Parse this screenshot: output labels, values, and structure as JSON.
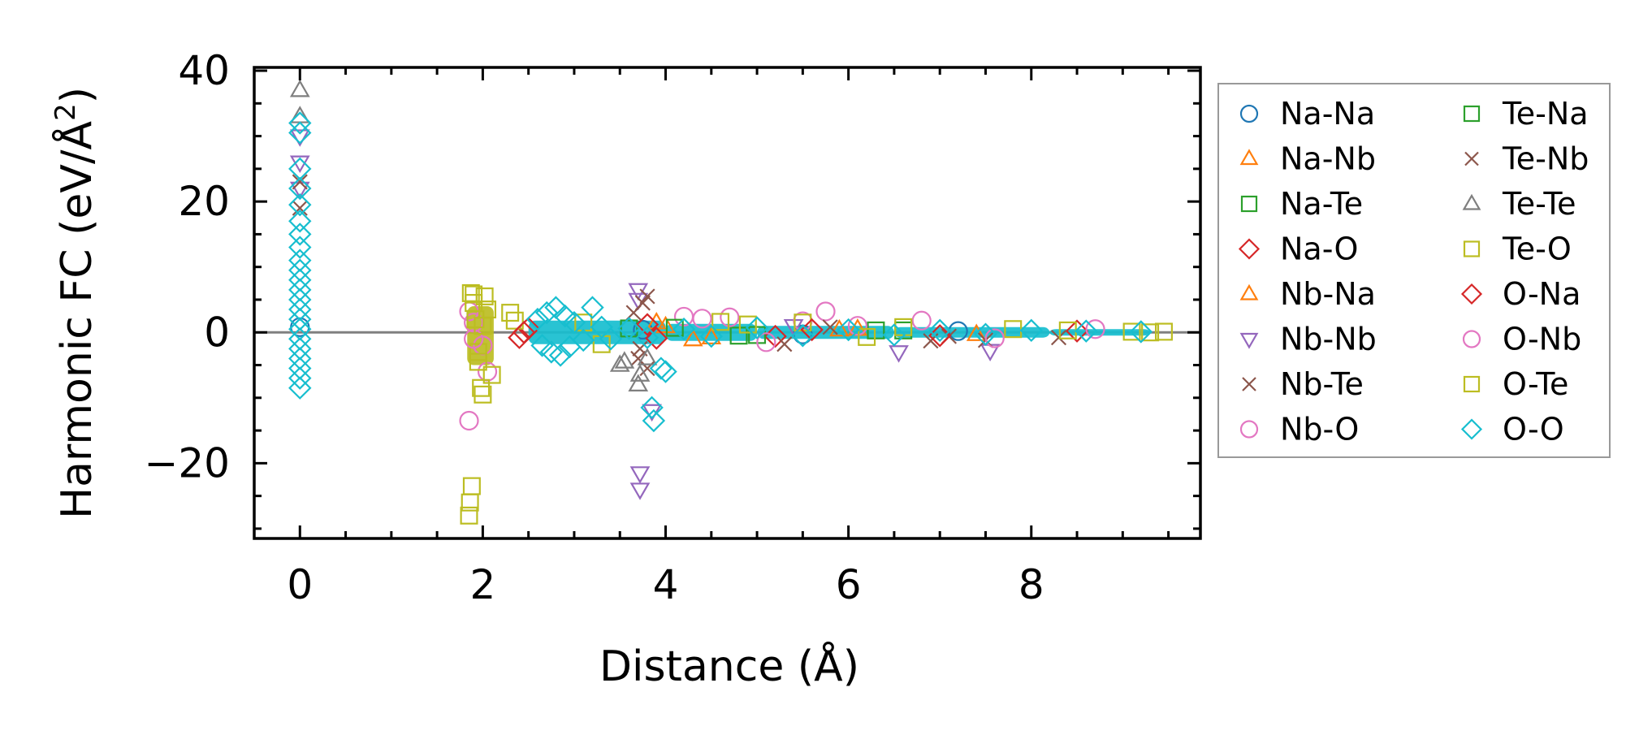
{
  "chart_data": {
    "type": "scatter",
    "title": "",
    "xlabel": "Distance (Å)",
    "ylabel_main": "Harmonic FC (eV/Å",
    "ylabel_sup": "2",
    "ylabel_close": ")",
    "xlim": [
      -0.5,
      9.85
    ],
    "ylim": [
      -31.5,
      40.5
    ],
    "x_ticks": [
      0,
      2,
      4,
      6,
      8
    ],
    "x_tick_labels": [
      "0",
      "2",
      "4",
      "6",
      "8"
    ],
    "y_ticks": [
      -20,
      0,
      20,
      40
    ],
    "y_tick_labels": [
      "−20",
      "0",
      "20",
      "40"
    ],
    "x_minor_step": 0.5,
    "y_minor_step": 5,
    "zero_line": true,
    "legend_position": "outside-right",
    "series": [
      {
        "name": "Na-Na",
        "marker": "circle",
        "color": "#1f77b4",
        "points": [
          [
            0.0,
            0.8
          ],
          [
            3.75,
            0.4
          ],
          [
            5.5,
            -0.3
          ],
          [
            7.2,
            0.2
          ]
        ]
      },
      {
        "name": "Na-Nb",
        "marker": "triangle-up",
        "color": "#ff7f0e",
        "points": [
          [
            3.9,
            1.5
          ],
          [
            4.5,
            -0.8
          ],
          [
            6.1,
            0.5
          ],
          [
            7.4,
            -0.3
          ]
        ]
      },
      {
        "name": "Na-Te",
        "marker": "square",
        "color": "#2ca02c",
        "points": [
          [
            3.6,
            0.6
          ],
          [
            4.8,
            -0.5
          ],
          [
            6.3,
            0.3
          ]
        ]
      },
      {
        "name": "Na-O",
        "marker": "diamond",
        "color": "#d62728",
        "points": [
          [
            2.4,
            -0.8
          ],
          [
            2.5,
            0.6
          ],
          [
            3.8,
            1.2
          ],
          [
            5.2,
            -0.6
          ],
          [
            8.5,
            0.2
          ]
        ]
      },
      {
        "name": "Nb-Na",
        "marker": "triangle-up",
        "color": "#ff7f0e",
        "points": [
          [
            4.0,
            0.9
          ],
          [
            4.3,
            -1.1
          ],
          [
            5.9,
            0.4
          ]
        ]
      },
      {
        "name": "Nb-Nb",
        "marker": "triangle-down",
        "color": "#9467bd",
        "points": [
          [
            0.0,
            30.0
          ],
          [
            0.0,
            26.0
          ],
          [
            0.0,
            22.0
          ],
          [
            3.7,
            6.5
          ],
          [
            3.7,
            5.0
          ],
          [
            3.72,
            -21.5
          ],
          [
            3.72,
            -24.0
          ],
          [
            3.85,
            -12.0
          ],
          [
            6.55,
            -3.0
          ],
          [
            7.55,
            -2.8
          ],
          [
            5.4,
            1.0
          ]
        ]
      },
      {
        "name": "Nb-Te",
        "marker": "x",
        "color": "#8c564b",
        "points": [
          [
            0.0,
            23.0
          ],
          [
            0.0,
            19.0
          ],
          [
            3.75,
            4.5
          ],
          [
            3.8,
            5.5
          ],
          [
            3.7,
            -4.0
          ],
          [
            3.8,
            -5.5
          ],
          [
            5.3,
            -1.8
          ],
          [
            6.9,
            -1.3
          ],
          [
            7.5,
            -1.2
          ],
          [
            8.3,
            -0.8
          ]
        ]
      },
      {
        "name": "Nb-O",
        "marker": "circle",
        "color": "#e377c2",
        "points": [
          [
            1.85,
            -13.5
          ],
          [
            1.85,
            3.2
          ],
          [
            1.9,
            1.5
          ],
          [
            2.0,
            -2.0
          ],
          [
            2.05,
            -6.0
          ],
          [
            4.2,
            2.4
          ],
          [
            4.7,
            2.3
          ],
          [
            5.5,
            1.7
          ],
          [
            5.75,
            3.2
          ],
          [
            6.8,
            1.8
          ],
          [
            8.7,
            0.5
          ]
        ]
      },
      {
        "name": "Te-Na",
        "marker": "square",
        "color": "#2ca02c",
        "points": [
          [
            4.1,
            0.7
          ],
          [
            5.0,
            -0.4
          ],
          [
            6.6,
            0.3
          ]
        ]
      },
      {
        "name": "Te-Nb",
        "marker": "x",
        "color": "#8c564b",
        "points": [
          [
            3.65,
            3.0
          ],
          [
            3.72,
            -2.5
          ],
          [
            5.8,
            0.8
          ],
          [
            7.1,
            -0.6
          ]
        ]
      },
      {
        "name": "Te-Te",
        "marker": "triangle-up",
        "color": "#7f7f7f",
        "points": [
          [
            0.0,
            37.0
          ],
          [
            0.0,
            33.0
          ],
          [
            3.5,
            -5.0
          ],
          [
            3.55,
            -4.5
          ],
          [
            3.7,
            -8.0
          ],
          [
            3.72,
            -6.5
          ],
          [
            3.8,
            -4.0
          ]
        ]
      },
      {
        "name": "Te-O",
        "marker": "square",
        "color": "#bcbd22",
        "points": [
          [
            1.85,
            -28.0
          ],
          [
            1.88,
            -23.5
          ],
          [
            1.87,
            6.0
          ],
          [
            1.9,
            4.5
          ],
          [
            1.92,
            2.0
          ],
          [
            1.95,
            -3.0
          ],
          [
            1.98,
            -8.5
          ],
          [
            2.0,
            -9.5
          ],
          [
            2.02,
            5.5
          ],
          [
            2.05,
            3.5
          ],
          [
            2.1,
            -6.5
          ],
          [
            2.3,
            3.0
          ],
          [
            2.35,
            1.8
          ],
          [
            3.3,
            -1.8
          ],
          [
            4.6,
            1.6
          ],
          [
            5.5,
            1.5
          ],
          [
            6.6,
            0.8
          ],
          [
            7.8,
            0.5
          ],
          [
            9.3,
            0.0
          ],
          [
            9.45,
            0.1
          ]
        ]
      },
      {
        "name": "O-Na",
        "marker": "diamond",
        "color": "#d62728",
        "points": [
          [
            2.45,
            0.0
          ],
          [
            3.9,
            -0.9
          ],
          [
            5.6,
            0.4
          ],
          [
            7.0,
            -0.5
          ]
        ]
      },
      {
        "name": "O-Nb",
        "marker": "circle",
        "color": "#e377c2",
        "points": [
          [
            1.9,
            -1.0
          ],
          [
            4.4,
            2.1
          ],
          [
            5.1,
            -1.5
          ],
          [
            6.1,
            1.0
          ],
          [
            7.6,
            -0.9
          ]
        ]
      },
      {
        "name": "O-Te",
        "marker": "square",
        "color": "#bcbd22",
        "points": [
          [
            1.86,
            -26.0
          ],
          [
            1.9,
            5.8
          ],
          [
            1.95,
            -4.5
          ],
          [
            2.0,
            1.0
          ],
          [
            3.1,
            1.5
          ],
          [
            4.9,
            1.2
          ],
          [
            6.2,
            -0.7
          ],
          [
            8.4,
            0.3
          ],
          [
            9.1,
            0.1
          ]
        ]
      },
      {
        "name": "O-O",
        "marker": "diamond",
        "color": "#17becf",
        "points": [
          [
            0.0,
            32.0
          ],
          [
            0.0,
            30.5
          ],
          [
            0.0,
            25.0
          ],
          [
            0.0,
            22.0
          ],
          [
            0.0,
            19.5
          ],
          [
            0.0,
            17.0
          ],
          [
            0.0,
            15.0
          ],
          [
            0.0,
            13.0
          ],
          [
            0.0,
            11.0
          ],
          [
            0.0,
            9.5
          ],
          [
            0.0,
            8.0
          ],
          [
            0.0,
            6.5
          ],
          [
            0.0,
            5.0
          ],
          [
            0.0,
            3.5
          ],
          [
            0.0,
            2.0
          ],
          [
            0.0,
            0.5
          ],
          [
            0.0,
            -1.0
          ],
          [
            0.0,
            -2.5
          ],
          [
            0.0,
            -4.0
          ],
          [
            0.0,
            -5.5
          ],
          [
            0.0,
            -7.0
          ],
          [
            0.0,
            -8.5
          ],
          [
            2.6,
            2.0
          ],
          [
            2.65,
            -2.0
          ],
          [
            2.7,
            3.0
          ],
          [
            2.75,
            -3.0
          ],
          [
            2.8,
            3.8
          ],
          [
            2.85,
            -3.5
          ],
          [
            2.9,
            2.5
          ],
          [
            2.95,
            -2.2
          ],
          [
            3.0,
            1.5
          ],
          [
            3.1,
            -1.2
          ],
          [
            3.2,
            3.8
          ],
          [
            3.3,
            0.8
          ],
          [
            3.4,
            -1.0
          ],
          [
            3.6,
            0.6
          ],
          [
            3.8,
            -0.8
          ],
          [
            3.85,
            -11.5
          ],
          [
            3.87,
            -13.5
          ],
          [
            3.95,
            -5.5
          ],
          [
            4.0,
            -6.0
          ],
          [
            4.2,
            0.5
          ],
          [
            4.5,
            -0.6
          ],
          [
            5.0,
            0.7
          ],
          [
            5.5,
            -0.5
          ],
          [
            6.0,
            0.4
          ],
          [
            6.5,
            -0.4
          ],
          [
            7.0,
            0.3
          ],
          [
            7.5,
            -0.3
          ],
          [
            8.0,
            0.3
          ],
          [
            8.6,
            0.2
          ],
          [
            9.2,
            0.1
          ]
        ]
      }
    ],
    "dense_bands": [
      {
        "x0": 1.83,
        "x1": 2.12,
        "y0": -5.0,
        "y1": 4.0,
        "color": "#bcbd22"
      },
      {
        "x0": 2.5,
        "x1": 4.0,
        "y0": -1.8,
        "y1": 1.8,
        "color": "#17becf"
      },
      {
        "x0": 4.0,
        "x1": 5.0,
        "y0": -1.3,
        "y1": 1.3,
        "color": "#17becf"
      },
      {
        "x0": 5.0,
        "x1": 6.5,
        "y0": -1.0,
        "y1": 1.0,
        "color": "#17becf"
      },
      {
        "x0": 6.5,
        "x1": 8.2,
        "y0": -0.8,
        "y1": 0.8,
        "color": "#17becf"
      },
      {
        "x0": 8.2,
        "x1": 9.3,
        "y0": -0.5,
        "y1": 0.5,
        "color": "#17becf"
      }
    ],
    "legend_columns": [
      [
        "Na-Na",
        "Na-Nb",
        "Na-Te",
        "Na-O",
        "Nb-Na",
        "Nb-Nb",
        "Nb-Te",
        "Nb-O"
      ],
      [
        "Te-Na",
        "Te-Nb",
        "Te-Te",
        "Te-O",
        "O-Na",
        "O-Nb",
        "O-Te",
        "O-O"
      ]
    ]
  }
}
